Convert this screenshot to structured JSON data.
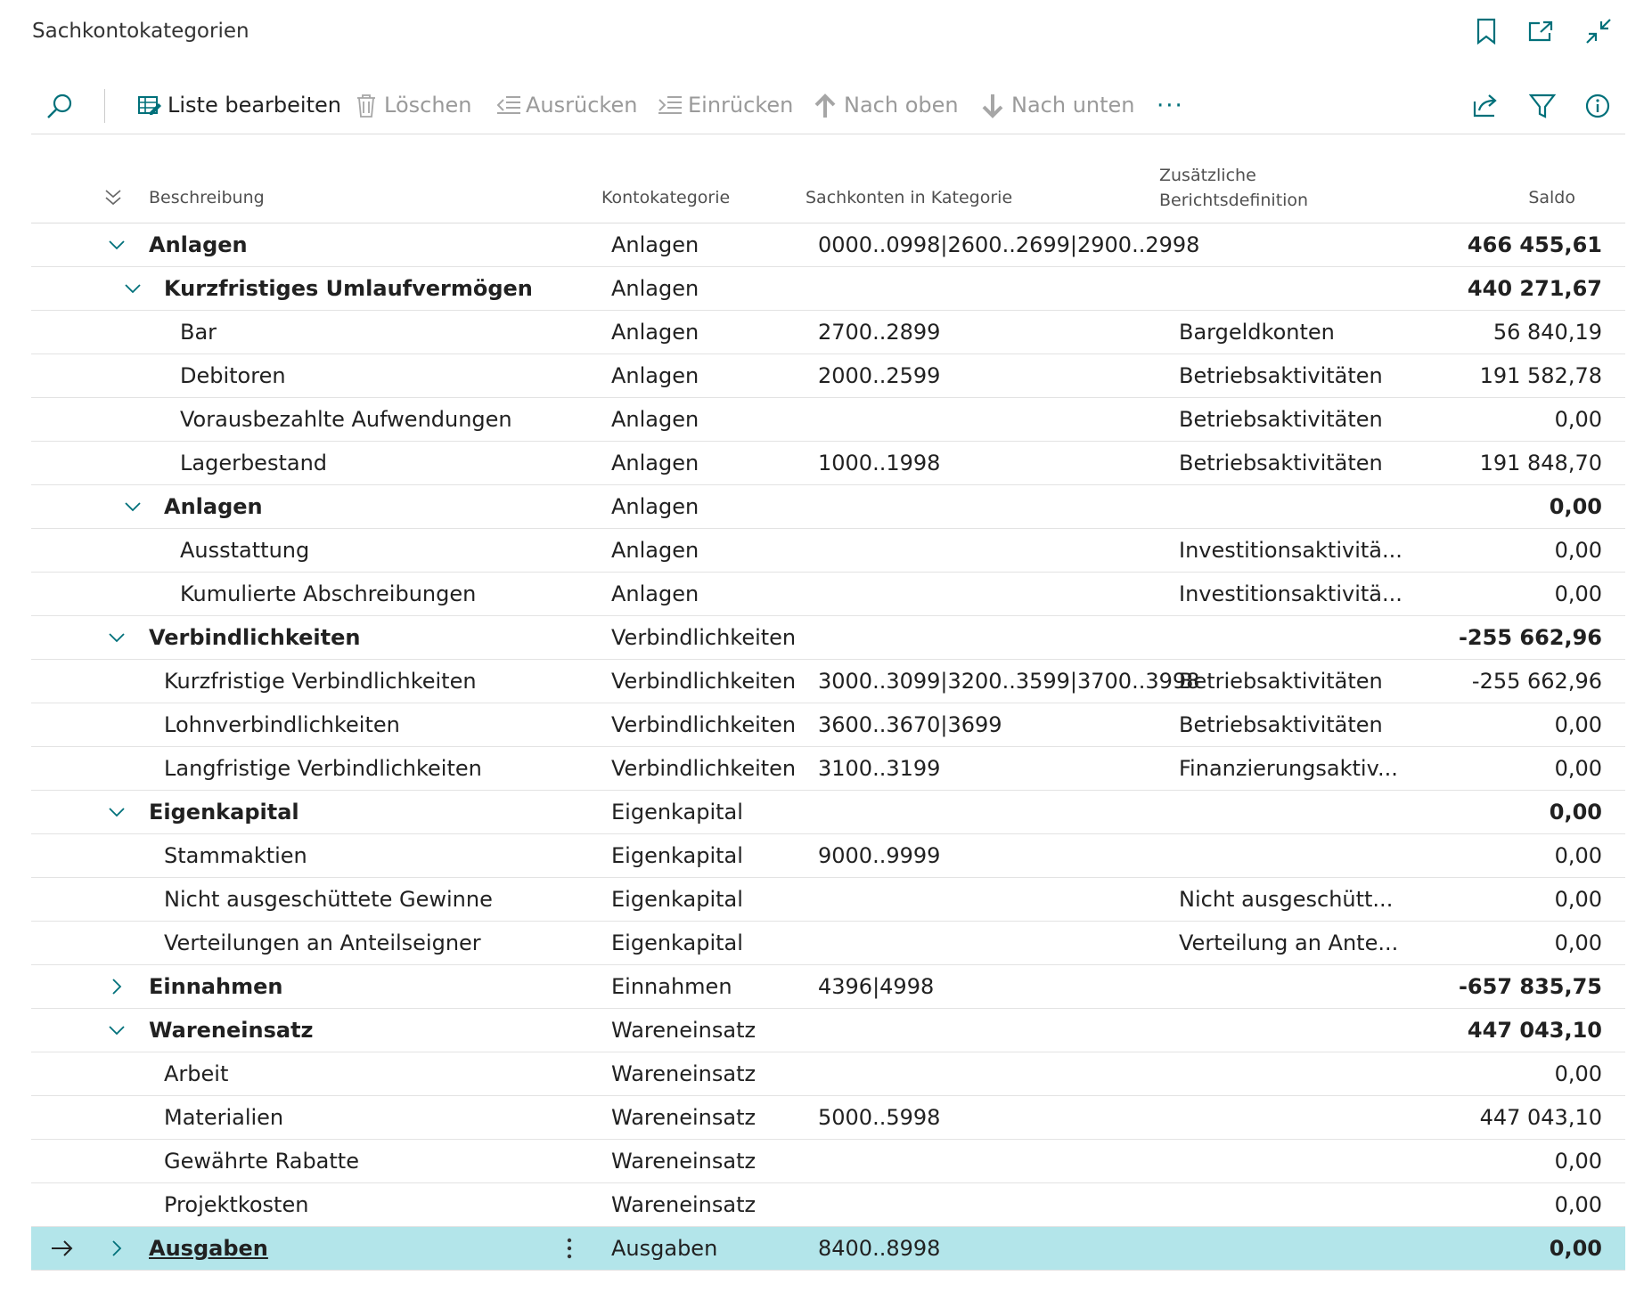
{
  "header": {
    "title": "Sachkontokategorien"
  },
  "toolbar": {
    "actions": [
      {
        "label": "Liste bearbeiten",
        "enabled": true,
        "icon": "edit"
      },
      {
        "label": "Löschen",
        "enabled": false,
        "icon": "trash"
      },
      {
        "label": "Ausrücken",
        "enabled": false,
        "icon": "outdent"
      },
      {
        "label": "Einrücken",
        "enabled": false,
        "icon": "indent"
      },
      {
        "label": "Nach oben",
        "enabled": false,
        "icon": "up"
      },
      {
        "label": "Nach unten",
        "enabled": false,
        "icon": "down"
      }
    ]
  },
  "table": {
    "columns": [
      "Beschreibung",
      "Kontokategorie",
      "Sachkonten in Kategorie",
      "Zusätzliche Berichtsdefinition",
      "Saldo"
    ],
    "rows": [
      {
        "description": "Anlagen",
        "category": "Anlagen",
        "accounts": "0000..0998|2600..2699|2900..2998",
        "saldo": "466 455,61",
        "level": 0,
        "bold": true,
        "expander": "down"
      },
      {
        "description": "Kurzfristiges Umlaufvermögen",
        "category": "Anlagen",
        "saldo": "440 271,67",
        "level": 1,
        "bold": true,
        "expander": "down"
      },
      {
        "description": "Bar",
        "category": "Anlagen",
        "accounts": "2700..2899",
        "report": "Bargeldkonten",
        "saldo": "56 840,19",
        "level": 2
      },
      {
        "description": "Debitoren",
        "category": "Anlagen",
        "accounts": "2000..2599",
        "report": "Betriebsaktivitäten",
        "saldo": "191 582,78",
        "level": 2
      },
      {
        "description": "Vorausbezahlte Aufwendungen",
        "category": "Anlagen",
        "report": "Betriebsaktivitäten",
        "saldo": "0,00",
        "level": 2
      },
      {
        "description": "Lagerbestand",
        "category": "Anlagen",
        "accounts": "1000..1998",
        "report": "Betriebsaktivitäten",
        "saldo": "191 848,70",
        "level": 2
      },
      {
        "description": "Anlagen",
        "category": "Anlagen",
        "saldo": "0,00",
        "level": 1,
        "bold": true,
        "expander": "down"
      },
      {
        "description": "Ausstattung",
        "category": "Anlagen",
        "report": "Investitionsaktivitä...",
        "saldo": "0,00",
        "level": 2
      },
      {
        "description": "Kumulierte Abschreibungen",
        "category": "Anlagen",
        "report": "Investitionsaktivitä...",
        "saldo": "0,00",
        "level": 2
      },
      {
        "description": "Verbindlichkeiten",
        "category": "Verbindlichkeiten",
        "saldo": "-255 662,96",
        "level": 0,
        "bold": true,
        "expander": "down"
      },
      {
        "description": "Kurzfristige Verbindlichkeiten",
        "category": "Verbindlichkeiten",
        "accounts": "3000..3099|3200..3599|3700..3998",
        "report": "Betriebsaktivitäten",
        "saldo": "-255 662,96",
        "level": 1
      },
      {
        "description": "Lohnverbindlichkeiten",
        "category": "Verbindlichkeiten",
        "accounts": "3600..3670|3699",
        "report": "Betriebsaktivitäten",
        "saldo": "0,00",
        "level": 1
      },
      {
        "description": "Langfristige Verbindlichkeiten",
        "category": "Verbindlichkeiten",
        "accounts": "3100..3199",
        "report": "Finanzierungsaktiv...",
        "saldo": "0,00",
        "level": 1
      },
      {
        "description": "Eigenkapital",
        "category": "Eigenkapital",
        "saldo": "0,00",
        "level": 0,
        "bold": true,
        "expander": "down"
      },
      {
        "description": "Stammaktien",
        "category": "Eigenkapital",
        "accounts": "9000..9999",
        "saldo": "0,00",
        "level": 1
      },
      {
        "description": "Nicht ausgeschüttete Gewinne",
        "category": "Eigenkapital",
        "report": "Nicht ausgeschütt...",
        "saldo": "0,00",
        "level": 1
      },
      {
        "description": "Verteilungen an Anteilseigner",
        "category": "Eigenkapital",
        "report": "Verteilung an Ante...",
        "saldo": "0,00",
        "level": 1
      },
      {
        "description": "Einnahmen",
        "category": "Einnahmen",
        "accounts": "4396|4998",
        "saldo": "-657 835,75",
        "level": 0,
        "bold": true,
        "expander": "right"
      },
      {
        "description": "Wareneinsatz",
        "category": "Wareneinsatz",
        "saldo": "447 043,10",
        "level": 0,
        "bold": true,
        "expander": "down"
      },
      {
        "description": "Arbeit",
        "category": "Wareneinsatz",
        "saldo": "0,00",
        "level": 1
      },
      {
        "description": "Materialien",
        "category": "Wareneinsatz",
        "accounts": "5000..5998",
        "saldo": "447 043,10",
        "level": 1
      },
      {
        "description": "Gewährte Rabatte",
        "category": "Wareneinsatz",
        "saldo": "0,00",
        "level": 1
      },
      {
        "description": "Projektkosten",
        "category": "Wareneinsatz",
        "saldo": "0,00",
        "level": 1
      },
      {
        "description": "Ausgaben",
        "category": "Ausgaben",
        "accounts": "8400..8998",
        "saldo": "0,00",
        "level": 0,
        "bold": true,
        "expander": "right",
        "selected": true
      }
    ]
  }
}
